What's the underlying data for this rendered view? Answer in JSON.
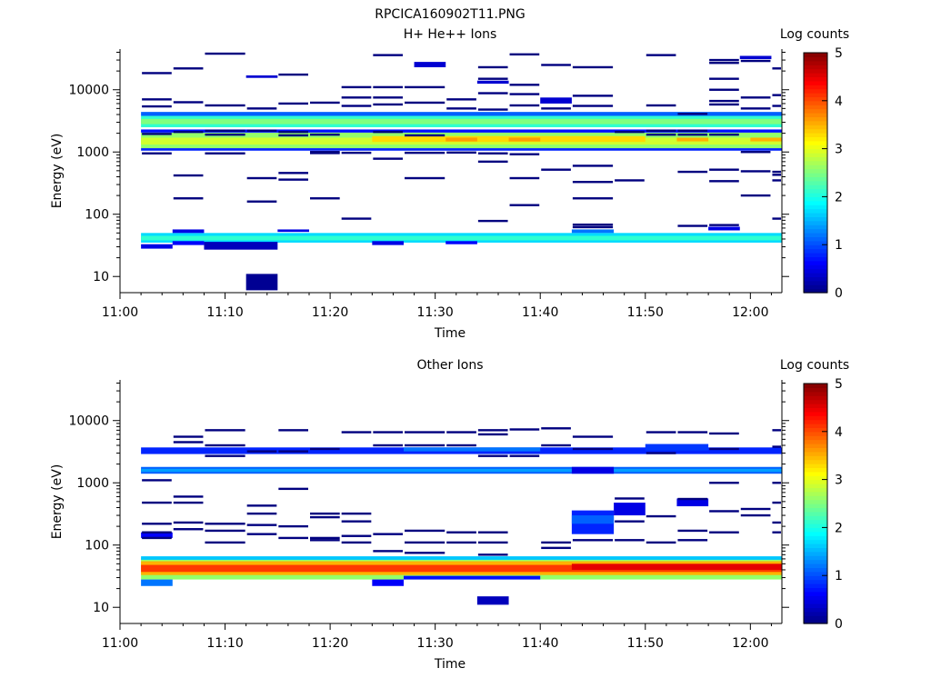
{
  "figure_title": "RPCICA160902T11.PNG",
  "colors": {
    "colormap": [
      "#00007f",
      "#0000ff",
      "#007fff",
      "#00ffff",
      "#7fff7f",
      "#ffff00",
      "#ff7f00",
      "#ff0000",
      "#7f0000"
    ]
  },
  "chart_data": [
    {
      "type": "heatmap",
      "title": "H+ He++ Ions",
      "xlabel": "Time",
      "ylabel": "Energy (eV)",
      "yscale": "log",
      "xlim": [
        "11:00",
        "12:03"
      ],
      "ylim": [
        5.5,
        45000
      ],
      "xticks": [
        "11:00",
        "11:10",
        "11:20",
        "11:30",
        "11:40",
        "11:50",
        "12:00"
      ],
      "yticks": [
        10,
        100,
        1000,
        10000
      ],
      "ytick_labels": [
        "10",
        "100",
        "1000",
        "10000"
      ],
      "colorbar": {
        "label": "Log counts",
        "min": 0,
        "max": 5,
        "ticks": [
          "0",
          "1",
          "2",
          "3",
          "4",
          "5"
        ]
      },
      "time_bins": [
        "11:02",
        "11:05",
        "11:08",
        "11:12",
        "11:15",
        "11:18",
        "11:21",
        "11:24",
        "11:27",
        "11:31",
        "11:34",
        "11:37",
        "11:40",
        "11:43",
        "11:47",
        "11:50",
        "11:53",
        "11:56",
        "11:59",
        "12:02"
      ],
      "cells": [
        {
          "t0": "11:02",
          "t1": "12:03",
          "e_lo": 1150,
          "e_hi": 2050,
          "v": 2.6
        },
        {
          "t0": "11:02",
          "t1": "12:03",
          "e_lo": 1320,
          "e_hi": 1700,
          "v": 2.9
        },
        {
          "t0": "11:24",
          "t1": "11:50",
          "e_lo": 1450,
          "e_hi": 1800,
          "v": 3.3
        },
        {
          "t0": "11:31",
          "t1": "11:34",
          "e_lo": 1480,
          "e_hi": 1700,
          "v": 3.6
        },
        {
          "t0": "11:37",
          "t1": "11:40",
          "e_lo": 1480,
          "e_hi": 1700,
          "v": 3.6
        },
        {
          "t0": "11:53",
          "t1": "11:56",
          "e_lo": 1480,
          "e_hi": 1700,
          "v": 3.5
        },
        {
          "t0": "12:00",
          "t1": "12:03",
          "e_lo": 1480,
          "e_hi": 1700,
          "v": 3.5
        },
        {
          "t0": "11:02",
          "t1": "12:03",
          "e_lo": 1050,
          "e_hi": 1150,
          "v": 0.8
        },
        {
          "t0": "11:02",
          "t1": "12:03",
          "e_lo": 2050,
          "e_hi": 2300,
          "v": 0.7
        },
        {
          "t0": "11:02",
          "t1": "12:03",
          "e_lo": 2500,
          "e_hi": 3800,
          "v": 2.1
        },
        {
          "t0": "11:02",
          "t1": "12:03",
          "e_lo": 2800,
          "e_hi": 3400,
          "v": 2.5
        },
        {
          "t0": "11:02",
          "t1": "12:03",
          "e_lo": 3800,
          "e_hi": 4400,
          "v": 1.1
        },
        {
          "t0": "11:02",
          "t1": "12:03",
          "e_lo": 35,
          "e_hi": 50,
          "v": 1.7
        },
        {
          "t0": "11:02",
          "t1": "12:03",
          "e_lo": 38,
          "e_hi": 45,
          "v": 2.1
        },
        {
          "t0": "11:05",
          "t1": "11:08",
          "e_lo": 50,
          "e_hi": 57,
          "v": 0.5
        },
        {
          "t0": "11:05",
          "t1": "11:08",
          "e_lo": 32,
          "e_hi": 37,
          "v": 0.6
        },
        {
          "t0": "11:08",
          "t1": "11:15",
          "e_lo": 27,
          "e_hi": 36,
          "v": 0.3
        },
        {
          "t0": "11:02",
          "t1": "11:05",
          "e_lo": 28,
          "e_hi": 33,
          "v": 0.5
        },
        {
          "t0": "11:15",
          "t1": "11:18",
          "e_lo": 52,
          "e_hi": 57,
          "v": 0.5
        },
        {
          "t0": "11:24",
          "t1": "11:27",
          "e_lo": 32,
          "e_hi": 37,
          "v": 0.5
        },
        {
          "t0": "11:31",
          "t1": "11:34",
          "e_lo": 33,
          "e_hi": 37,
          "v": 0.6
        },
        {
          "t0": "11:43",
          "t1": "11:47",
          "e_lo": 50,
          "e_hi": 57,
          "v": 1.2
        },
        {
          "t0": "11:56",
          "t1": "11:59",
          "e_lo": 55,
          "e_hi": 63,
          "v": 0.5
        },
        {
          "t0": "11:12",
          "t1": "11:15",
          "e_lo": 6,
          "e_hi": 11,
          "v": 0.1
        },
        {
          "t0": "11:12",
          "t1": "11:15",
          "e_lo": 15500,
          "e_hi": 17000,
          "v": 0.4
        },
        {
          "t0": "11:28",
          "t1": "11:31",
          "e_lo": 23000,
          "e_hi": 28000,
          "v": 0.4
        },
        {
          "t0": "11:40",
          "t1": "11:43",
          "e_lo": 6000,
          "e_hi": 7500,
          "v": 0.4
        },
        {
          "t0": "11:34",
          "t1": "11:37",
          "e_lo": 12500,
          "e_hi": 14000,
          "v": 0.4
        },
        {
          "t0": "11:59",
          "t1": "12:02",
          "e_lo": 31000,
          "e_hi": 35000,
          "v": 0.4
        }
      ],
      "sparse_lines": [
        {
          "t": "11:02",
          "e": [
            18500,
            7000,
            5400,
            1950,
            950
          ]
        },
        {
          "t": "11:05",
          "e": [
            22000,
            6300,
            2100,
            420,
            180
          ]
        },
        {
          "t": "11:08",
          "e": [
            38000,
            5600,
            2200,
            1900,
            950
          ]
        },
        {
          "t": "11:12",
          "e": [
            5000,
            2200,
            380,
            160
          ]
        },
        {
          "t": "11:15",
          "e": [
            17500,
            6000,
            2100,
            1850,
            460,
            360
          ]
        },
        {
          "t": "11:18",
          "e": [
            6200,
            1900,
            1000,
            960,
            180
          ]
        },
        {
          "t": "11:21",
          "e": [
            11000,
            7500,
            5500,
            970,
            85
          ]
        },
        {
          "t": "11:24",
          "e": [
            36000,
            11000,
            7500,
            5800,
            2100,
            780
          ]
        },
        {
          "t": "11:27",
          "e": [
            11000,
            6200,
            1850,
            970,
            380
          ]
        },
        {
          "t": "11:31",
          "e": [
            7000,
            5000,
            980
          ]
        },
        {
          "t": "11:34",
          "e": [
            23000,
            15000,
            8800,
            4800,
            950,
            700,
            78
          ]
        },
        {
          "t": "11:37",
          "e": [
            37000,
            12000,
            8500,
            5600,
            920,
            380,
            140
          ]
        },
        {
          "t": "11:40",
          "e": [
            25000,
            5000,
            520
          ]
        },
        {
          "t": "11:43",
          "e": [
            23000,
            8000,
            5500,
            600,
            330,
            180,
            68,
            62
          ]
        },
        {
          "t": "11:47",
          "e": [
            2100,
            350
          ]
        },
        {
          "t": "11:50",
          "e": [
            36000,
            5600,
            2200,
            1900
          ]
        },
        {
          "t": "11:53",
          "e": [
            4100,
            2200,
            1900,
            480,
            65
          ]
        },
        {
          "t": "11:56",
          "e": [
            30000,
            27000,
            15000,
            10000,
            6600,
            5800,
            1900,
            520,
            340,
            67
          ]
        },
        {
          "t": "11:59",
          "e": [
            29000,
            7500,
            5000,
            1000,
            490,
            200
          ]
        },
        {
          "t": "12:02",
          "e": [
            22000,
            8200,
            5500,
            480,
            430,
            350,
            85
          ]
        }
      ]
    },
    {
      "type": "heatmap",
      "title": "Other Ions",
      "xlabel": "Time",
      "ylabel": "Energy (eV)",
      "yscale": "log",
      "xlim": [
        "11:00",
        "12:03"
      ],
      "ylim": [
        5.5,
        45000
      ],
      "xticks": [
        "11:00",
        "11:10",
        "11:20",
        "11:30",
        "11:40",
        "11:50",
        "12:00"
      ],
      "yticks": [
        10,
        100,
        1000,
        10000
      ],
      "ytick_labels": [
        "10",
        "100",
        "1000",
        "10000"
      ],
      "colorbar": {
        "label": "Log counts",
        "min": 0,
        "max": 5,
        "ticks": [
          "0",
          "1",
          "2",
          "3",
          "4",
          "5"
        ]
      },
      "time_bins": [
        "11:02",
        "11:05",
        "11:08",
        "11:12",
        "11:15",
        "11:18",
        "11:21",
        "11:24",
        "11:27",
        "11:31",
        "11:34",
        "11:37",
        "11:40",
        "11:43",
        "11:47",
        "11:50",
        "11:53",
        "11:56",
        "11:59",
        "12:02"
      ],
      "cells": [
        {
          "t0": "11:02",
          "t1": "12:03",
          "e_lo": 28,
          "e_hi": 62,
          "v": 2.6
        },
        {
          "t0": "11:02",
          "t1": "12:03",
          "e_lo": 33,
          "e_hi": 55,
          "v": 3.5
        },
        {
          "t0": "11:02",
          "t1": "12:03",
          "e_lo": 37,
          "e_hi": 48,
          "v": 4.1
        },
        {
          "t0": "11:43",
          "t1": "12:03",
          "e_lo": 40,
          "e_hi": 50,
          "v": 4.5
        },
        {
          "t0": "11:02",
          "t1": "11:05",
          "e_lo": 22,
          "e_hi": 28,
          "v": 1.2
        },
        {
          "t0": "11:24",
          "t1": "11:27",
          "e_lo": 22,
          "e_hi": 28,
          "v": 0.6
        },
        {
          "t0": "11:27",
          "t1": "11:40",
          "e_lo": 28,
          "e_hi": 32,
          "v": 0.7
        },
        {
          "t0": "11:02",
          "t1": "12:03",
          "e_lo": 58,
          "e_hi": 66,
          "v": 1.6
        },
        {
          "t0": "11:34",
          "t1": "11:37",
          "e_lo": 11,
          "e_hi": 15,
          "v": 0.3
        },
        {
          "t0": "11:02",
          "t1": "12:03",
          "e_lo": 1400,
          "e_hi": 1800,
          "v": 1.1
        },
        {
          "t0": "11:02",
          "t1": "12:03",
          "e_lo": 1500,
          "e_hi": 1680,
          "v": 1.4
        },
        {
          "t0": "11:43",
          "t1": "11:47",
          "e_lo": 1400,
          "e_hi": 1800,
          "v": 0.5
        },
        {
          "t0": "11:02",
          "t1": "12:03",
          "e_lo": 2900,
          "e_hi": 3700,
          "v": 0.8
        },
        {
          "t0": "11:27",
          "t1": "11:40",
          "e_lo": 3200,
          "e_hi": 3700,
          "v": 1.2
        },
        {
          "t0": "11:50",
          "t1": "11:56",
          "e_lo": 3300,
          "e_hi": 4200,
          "v": 0.9
        },
        {
          "t0": "11:43",
          "t1": "11:47",
          "e_lo": 150,
          "e_hi": 360,
          "v": 0.8
        },
        {
          "t0": "11:43",
          "t1": "11:47",
          "e_lo": 220,
          "e_hi": 300,
          "v": 1.1
        },
        {
          "t0": "11:47",
          "t1": "11:50",
          "e_lo": 300,
          "e_hi": 480,
          "v": 0.5
        },
        {
          "t0": "11:53",
          "t1": "11:56",
          "e_lo": 420,
          "e_hi": 560,
          "v": 0.5
        },
        {
          "t0": "11:02",
          "t1": "11:05",
          "e_lo": 130,
          "e_hi": 160,
          "v": 0.6
        }
      ],
      "sparse_lines": [
        {
          "t": "11:02",
          "e": [
            1100,
            480,
            220,
            160,
            130
          ]
        },
        {
          "t": "11:05",
          "e": [
            5500,
            4500,
            600,
            480,
            230,
            180
          ]
        },
        {
          "t": "11:08",
          "e": [
            7000,
            4000,
            2700,
            220,
            170,
            110
          ]
        },
        {
          "t": "11:12",
          "e": [
            3200,
            430,
            320,
            210,
            150
          ]
        },
        {
          "t": "11:15",
          "e": [
            7000,
            3200,
            800,
            200,
            130
          ]
        },
        {
          "t": "11:18",
          "e": [
            3500,
            320,
            280,
            130,
            120
          ]
        },
        {
          "t": "11:21",
          "e": [
            6500,
            320,
            240,
            140,
            110
          ]
        },
        {
          "t": "11:24",
          "e": [
            6500,
            4000,
            150,
            80
          ]
        },
        {
          "t": "11:27",
          "e": [
            6500,
            4000,
            170,
            110,
            75
          ]
        },
        {
          "t": "11:31",
          "e": [
            6500,
            4000,
            160,
            110
          ]
        },
        {
          "t": "11:34",
          "e": [
            7000,
            6000,
            2700,
            160,
            110,
            70
          ]
        },
        {
          "t": "11:37",
          "e": [
            7200,
            2700
          ]
        },
        {
          "t": "11:40",
          "e": [
            7500,
            4000,
            110,
            90
          ]
        },
        {
          "t": "11:43",
          "e": [
            5500,
            3500,
            120
          ]
        },
        {
          "t": "11:47",
          "e": [
            560,
            240,
            120
          ]
        },
        {
          "t": "11:50",
          "e": [
            6500,
            3000,
            290,
            110
          ]
        },
        {
          "t": "11:53",
          "e": [
            6500,
            550,
            170,
            120
          ]
        },
        {
          "t": "11:56",
          "e": [
            6200,
            3500,
            1000,
            350,
            160
          ]
        },
        {
          "t": "11:59",
          "e": [
            380,
            300
          ]
        },
        {
          "t": "12:02",
          "e": [
            7000,
            3800,
            1000,
            480,
            230,
            160
          ]
        }
      ]
    }
  ]
}
